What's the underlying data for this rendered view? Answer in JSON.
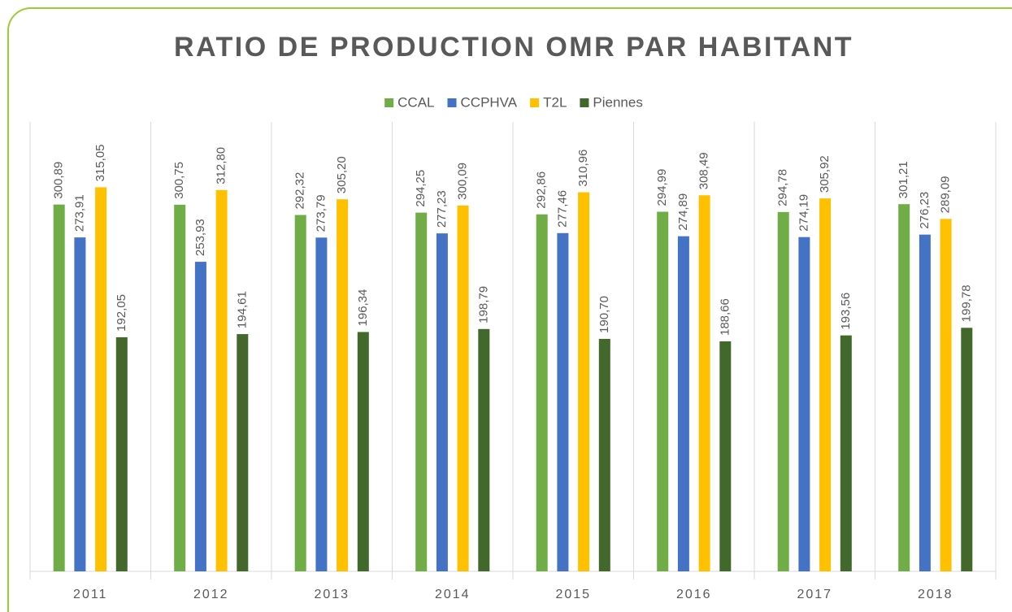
{
  "chart_data": {
    "type": "bar",
    "title": "RATIO DE PRODUCTION OMR PAR HABITANT",
    "categories": [
      "2011",
      "2012",
      "2013",
      "2014",
      "2015",
      "2016",
      "2017",
      "2018"
    ],
    "series": [
      {
        "name": "CCAL",
        "color": "#70ad47",
        "values": [
          300.89,
          300.75,
          292.32,
          294.25,
          292.86,
          294.99,
          294.78,
          301.21
        ],
        "value_labels": [
          "300,89",
          "300,75",
          "292,32",
          "294,25",
          "292,86",
          "294,99",
          "294,78",
          "301,21"
        ]
      },
      {
        "name": "CCPHVA",
        "color": "#4472c4",
        "values": [
          273.91,
          253.93,
          273.79,
          277.23,
          277.46,
          274.89,
          274.19,
          276.23
        ],
        "value_labels": [
          "273,91",
          "253,93",
          "273,79",
          "277,23",
          "277,46",
          "274,89",
          "274,19",
          "276,23"
        ]
      },
      {
        "name": "T2L",
        "color": "#ffc000",
        "values": [
          315.05,
          312.8,
          305.2,
          300.09,
          310.96,
          308.49,
          305.92,
          289.09
        ],
        "value_labels": [
          "315,05",
          "312,80",
          "305,20",
          "300,09",
          "310,96",
          "308,49",
          "305,92",
          "289,09"
        ]
      },
      {
        "name": "Piennes",
        "color": "#43682b",
        "values": [
          192.05,
          194.61,
          196.34,
          198.79,
          190.7,
          188.66,
          193.56,
          199.78
        ],
        "value_labels": [
          "192,05",
          "194,61",
          "196,34",
          "198,79",
          "190,70",
          "188,66",
          "193,56",
          "199,78"
        ]
      }
    ],
    "ylim": [
      0,
      350
    ],
    "legend": "top"
  }
}
